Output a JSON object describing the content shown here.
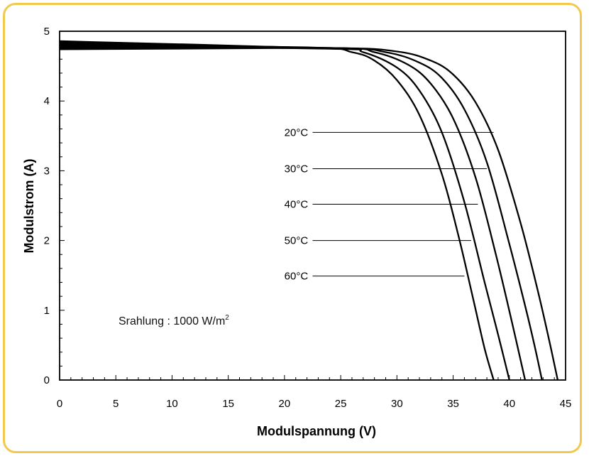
{
  "chart_data": {
    "type": "line",
    "title": "",
    "xlabel": "Modulspannung (V)",
    "ylabel": "Modulstrom (A)",
    "xlim": [
      0,
      45
    ],
    "ylim": [
      0,
      5
    ],
    "x_ticks": [
      "0",
      "5",
      "10",
      "15",
      "20",
      "25",
      "30",
      "35",
      "40",
      "45"
    ],
    "y_ticks": [
      "0",
      "1",
      "2",
      "3",
      "4",
      "5"
    ],
    "grid": false,
    "annotation": {
      "text": "Srahlung : 1000 W/m",
      "superscript": "2"
    },
    "series": [
      {
        "name": "20°C",
        "isc": 4.77,
        "voc": 44.3,
        "points": [
          [
            0,
            4.77
          ],
          [
            24,
            4.76
          ],
          [
            30,
            4.71
          ],
          [
            33,
            4.58
          ],
          [
            35,
            4.38
          ],
          [
            37,
            3.98
          ],
          [
            39,
            3.3
          ],
          [
            41,
            2.25
          ],
          [
            42.5,
            1.3
          ],
          [
            43.5,
            0.6
          ],
          [
            44.3,
            0.0
          ]
        ]
      },
      {
        "name": "30°C",
        "isc": 4.78,
        "voc": 42.9,
        "points": [
          [
            0,
            4.78
          ],
          [
            24,
            4.76
          ],
          [
            29,
            4.7
          ],
          [
            32,
            4.55
          ],
          [
            34,
            4.33
          ],
          [
            36,
            3.88
          ],
          [
            38,
            3.12
          ],
          [
            40,
            1.95
          ],
          [
            41.5,
            1.0
          ],
          [
            42.3,
            0.45
          ],
          [
            42.9,
            0.0
          ]
        ]
      },
      {
        "name": "40°C",
        "isc": 4.79,
        "voc": 41.4,
        "points": [
          [
            0,
            4.79
          ],
          [
            24,
            4.76
          ],
          [
            28,
            4.7
          ],
          [
            31,
            4.52
          ],
          [
            33,
            4.25
          ],
          [
            35,
            3.75
          ],
          [
            37,
            2.9
          ],
          [
            38.8,
            1.8
          ],
          [
            40.2,
            0.85
          ],
          [
            41.4,
            0.0
          ]
        ]
      },
      {
        "name": "50°C",
        "isc": 4.8,
        "voc": 40.0,
        "points": [
          [
            0,
            4.8
          ],
          [
            24,
            4.75
          ],
          [
            27,
            4.7
          ],
          [
            30,
            4.48
          ],
          [
            32,
            4.15
          ],
          [
            34,
            3.55
          ],
          [
            36,
            2.55
          ],
          [
            37.8,
            1.4
          ],
          [
            39,
            0.65
          ],
          [
            40.0,
            0.0
          ]
        ]
      },
      {
        "name": "60°C",
        "isc": 4.81,
        "voc": 38.6,
        "points": [
          [
            0,
            4.81
          ],
          [
            22,
            4.77
          ],
          [
            26,
            4.7
          ],
          [
            28,
            4.58
          ],
          [
            30,
            4.3
          ],
          [
            32,
            3.8
          ],
          [
            34,
            2.95
          ],
          [
            35.5,
            2.05
          ],
          [
            36.8,
            1.15
          ],
          [
            37.8,
            0.45
          ],
          [
            38.6,
            0.0
          ]
        ]
      }
    ],
    "temperature_labels": [
      {
        "text": "20°C",
        "y": 3.55,
        "x_end": 38.6
      },
      {
        "text": "30°C",
        "y": 3.03,
        "x_end": 38.0
      },
      {
        "text": "40°C",
        "y": 2.52,
        "x_end": 37.2
      },
      {
        "text": "50°C",
        "y": 2.0,
        "x_end": 36.6
      },
      {
        "text": "60°C",
        "y": 1.49,
        "x_end": 36.0
      }
    ]
  }
}
